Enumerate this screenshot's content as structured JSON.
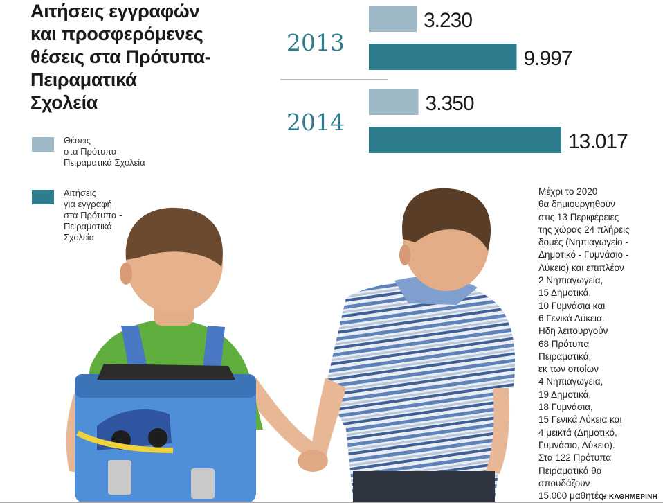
{
  "title_lines": [
    "Αιτήσεις εγγραφών",
    "και προσφερόμενες",
    "θέσεις στα Πρότυπα-",
    "Πειραματικά",
    "Σχολεία"
  ],
  "legend": [
    {
      "lines": [
        "Θέσεις",
        "στα Πρότυπα -",
        "Πειραματικά Σχολεία"
      ],
      "color": "#9eb8c5"
    },
    {
      "lines": [
        "Αιτήσεις",
        "για εγγραφή",
        "στα Πρότυπα -",
        "Πειραματικά",
        "Σχολεία"
      ],
      "color": "#2d7d8e"
    }
  ],
  "chart_data": {
    "type": "bar",
    "orientation": "horizontal",
    "categories": [
      "2013",
      "2014"
    ],
    "series": [
      {
        "name": "Θέσεις στα Πρότυπα - Πειραματικά Σχολεία",
        "values": [
          3230,
          3350
        ],
        "labels": [
          "3.230",
          "3.350"
        ],
        "color": "#9eb8c5"
      },
      {
        "name": "Αιτήσεις για εγγραφή στα Πρότυπα - Πειραματικά Σχολεία",
        "values": [
          9997,
          13017
        ],
        "labels": [
          "9.997",
          "13.017"
        ],
        "color": "#2d7d8e"
      }
    ],
    "title": "Αιτήσεις εγγραφών και προσφερόμενες θέσεις στα Πρότυπα-Πειραματικά Σχολεία",
    "year_color": "#2d7d8e"
  },
  "note_lines": [
    "Μέχρι το 2020",
    "θα δημιουργηθούν",
    "στις 13 Περιφέρειες",
    "της χώρας 24 πλήρεις",
    "δομές (Νηπιαγωγείο -",
    "Δημοτικό - Γυμνάσιο -",
    "Λύκειο) και επιπλέον",
    "2 Νηπιαγωγεία,",
    "15 Δημοτικά,",
    "10 Γυμνάσια και",
    "6 Γενικά Λύκεια.",
    "Ηδη λειτουργούν",
    "68 Πρότυπα",
    "Πειραματικά,",
    "εκ των οποίων",
    "4 Νηπιαγωγεία,",
    "19 Δημοτικά,",
    "18 Γυμνάσια,",
    "15 Γενικά Λύκεια και",
    "4 μεικτά (Δημοτικό,",
    "Γυμνάσιο, Λύκειο).",
    "Στα 122 Πρότυπα",
    "Πειραματικά θα",
    "σπουδάζουν",
    "15.000 μαθητές."
  ],
  "source": "Η ΚΑΘΗΜΕΡΙΝΗ"
}
